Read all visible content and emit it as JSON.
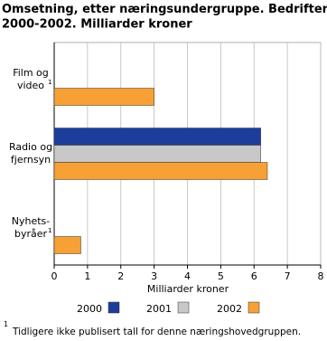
{
  "chart_data": {
    "type": "hbar",
    "title": "Omsetning, etter næringsundergruppe. Bedrifter.\n2000-2002. Milliarder kroner",
    "categories": [
      "Film og\nvideo",
      "Radio og\nfjernsyn",
      "Nyhets-\nbyråer"
    ],
    "category_notes": [
      "1",
      null,
      "1"
    ],
    "series": [
      {
        "name": "2000",
        "color": "#1c3d9c",
        "values": [
          null,
          6.2,
          null
        ]
      },
      {
        "name": "2001",
        "color": "#c8c8c8",
        "values": [
          null,
          6.2,
          null
        ]
      },
      {
        "name": "2002",
        "color": "#f7a035",
        "values": [
          3.0,
          6.4,
          0.8
        ]
      }
    ],
    "xlabel": "Milliarder kroner",
    "xlim": [
      0,
      8
    ],
    "xticks": [
      0,
      1,
      2,
      3,
      4,
      5,
      6,
      7,
      8
    ],
    "grid": true,
    "footnote_marker": "1",
    "footnote": "Tidligere ikke publisert tall for denne næringshovedgruppen."
  }
}
